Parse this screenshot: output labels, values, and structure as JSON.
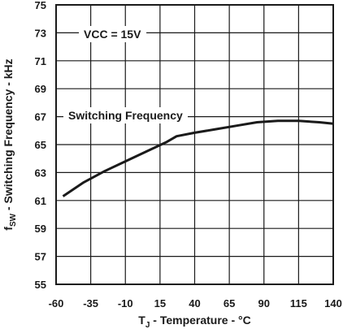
{
  "chart_data": {
    "type": "line",
    "xlabel_main": "T",
    "xlabel_sub": "J",
    "xlabel_rest": " - Temperature - °C",
    "ylabel_main": "f",
    "ylabel_sub": "SW",
    "ylabel_rest": " - Switching Frequency - kHz",
    "xlim": [
      -60,
      140
    ],
    "ylim": [
      55,
      75
    ],
    "x_ticks": [
      -60,
      -35,
      -10,
      15,
      40,
      65,
      90,
      115,
      140
    ],
    "y_ticks": [
      55,
      57,
      59,
      61,
      63,
      65,
      67,
      69,
      71,
      73,
      75
    ],
    "grid": true,
    "annotations": [
      {
        "text": "VCC = 15V"
      },
      {
        "text": "Switching Frequency"
      }
    ],
    "series": [
      {
        "x": [
          -55,
          -40,
          -25,
          -10,
          5,
          20,
          27,
          40,
          55,
          70,
          85,
          100,
          115,
          130,
          140
        ],
        "y": [
          61.3,
          62.3,
          63.1,
          63.8,
          64.5,
          65.2,
          65.6,
          65.85,
          66.1,
          66.35,
          66.6,
          66.7,
          66.7,
          66.6,
          66.5
        ]
      }
    ]
  }
}
